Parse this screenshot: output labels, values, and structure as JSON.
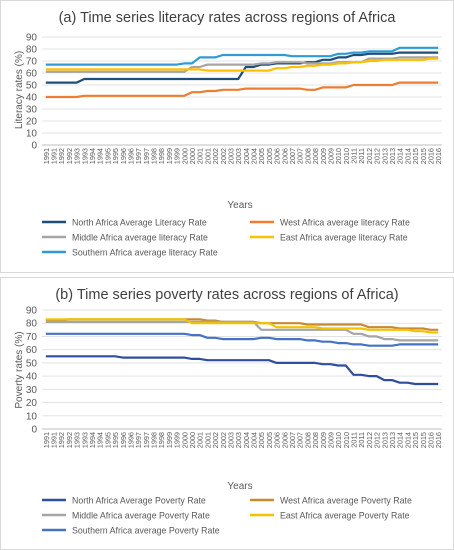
{
  "chart_data": [
    {
      "type": "line",
      "title": "(a) Time series literacy rates across regions of Africa",
      "xlabel": "Years",
      "ylabel": "Literacy rates (%)",
      "ylim": [
        0,
        90
      ],
      "yticks": [
        0,
        10,
        20,
        30,
        40,
        50,
        60,
        70,
        80,
        90
      ],
      "grid": true,
      "legend_position": "bottom",
      "categories": [
        "1991",
        "1991",
        "1992",
        "1992",
        "1993",
        "1993",
        "1994",
        "1994",
        "1995",
        "1995",
        "1996",
        "1996",
        "1997",
        "1997",
        "1998",
        "1998",
        "1999",
        "1999",
        "2000",
        "2000",
        "2001",
        "2001",
        "2002",
        "2002",
        "2003",
        "2003",
        "2004",
        "2004",
        "2005",
        "2005",
        "2006",
        "2006",
        "2007",
        "2007",
        "2008",
        "2008",
        "2009",
        "2009",
        "2010",
        "2010",
        "2011",
        "2011",
        "2012",
        "2012",
        "2013",
        "2013",
        "2014",
        "2014",
        "2015",
        "2015",
        "2016",
        "2016"
      ],
      "series": [
        {
          "name": "North Africa Average Literacy Rate",
          "color": "#1f4e79",
          "values": [
            52,
            52,
            52,
            52,
            52,
            55,
            55,
            55,
            55,
            55,
            55,
            55,
            55,
            55,
            55,
            55,
            55,
            55,
            55,
            55,
            55,
            55,
            55,
            55,
            55,
            55,
            65,
            65,
            67,
            67,
            68,
            68,
            68,
            68,
            69,
            69,
            71,
            71,
            73,
            73,
            75,
            75,
            76,
            76,
            76,
            76,
            77,
            77,
            77,
            77,
            77,
            77
          ]
        },
        {
          "name": "West Africa average literacy Rate",
          "color": "#ed7d31",
          "values": [
            40,
            40,
            40,
            40,
            40,
            41,
            41,
            41,
            41,
            41,
            41,
            41,
            41,
            41,
            41,
            41,
            41,
            41,
            41,
            44,
            44,
            45,
            45,
            46,
            46,
            46,
            47,
            47,
            47,
            47,
            47,
            47,
            47,
            47,
            46,
            46,
            48,
            48,
            48,
            48,
            50,
            50,
            50,
            50,
            50,
            50,
            52,
            52,
            52,
            52,
            52,
            52
          ]
        },
        {
          "name": "Middle Africa average literacy Rate",
          "color": "#a5a5a5",
          "values": [
            61,
            61,
            61,
            61,
            61,
            61,
            61,
            61,
            61,
            61,
            61,
            61,
            61,
            61,
            61,
            61,
            61,
            61,
            61,
            65,
            65,
            67,
            67,
            67,
            67,
            67,
            67,
            67,
            68,
            68,
            69,
            69,
            69,
            69,
            68,
            68,
            68,
            68,
            69,
            69,
            69,
            69,
            72,
            72,
            72,
            72,
            73,
            73,
            73,
            73,
            73,
            73
          ]
        },
        {
          "name": "East Africa average literacy Rate",
          "color": "#ffc000",
          "values": [
            63,
            63,
            63,
            63,
            63,
            63,
            63,
            63,
            63,
            63,
            63,
            63,
            63,
            63,
            63,
            63,
            63,
            63,
            63,
            63,
            63,
            62,
            62,
            62,
            62,
            62,
            62,
            62,
            62,
            62,
            64,
            64,
            65,
            65,
            66,
            66,
            67,
            67,
            68,
            68,
            69,
            69,
            70,
            70,
            71,
            71,
            71,
            71,
            71,
            71,
            72,
            72
          ]
        },
        {
          "name": "Southern Africa average literacy Rate",
          "color": "#2e9bd6",
          "values": [
            67,
            67,
            67,
            67,
            67,
            67,
            67,
            67,
            67,
            67,
            67,
            67,
            67,
            67,
            67,
            67,
            67,
            67,
            68,
            68,
            73,
            73,
            73,
            75,
            75,
            75,
            75,
            75,
            75,
            75,
            75,
            75,
            74,
            74,
            74,
            74,
            74,
            74,
            76,
            76,
            77,
            77,
            78,
            78,
            78,
            78,
            81,
            81,
            81,
            81,
            81,
            81
          ]
        }
      ]
    },
    {
      "type": "line",
      "title": "(b) Time series poverty rates across regions of Africa)",
      "xlabel": "Years",
      "ylabel": "Poverty rates (%)",
      "ylim": [
        0,
        90
      ],
      "yticks": [
        0,
        10,
        20,
        30,
        40,
        50,
        60,
        70,
        80,
        90
      ],
      "grid": true,
      "legend_position": "bottom",
      "categories": [
        "1991",
        "1991",
        "1992",
        "1992",
        "1993",
        "1993",
        "1994",
        "1994",
        "1995",
        "1995",
        "1996",
        "1996",
        "1997",
        "1997",
        "1998",
        "1998",
        "1999",
        "1999",
        "2000",
        "2000",
        "2001",
        "2001",
        "2002",
        "2002",
        "2003",
        "2003",
        "2004",
        "2004",
        "2005",
        "2005",
        "2006",
        "2006",
        "2007",
        "2007",
        "2008",
        "2008",
        "2009",
        "2009",
        "2010",
        "2010",
        "2011",
        "2011",
        "2012",
        "2012",
        "2013",
        "2013",
        "2014",
        "2014",
        "2015",
        "2015",
        "2016",
        "2016"
      ],
      "series": [
        {
          "name": "North Africa Average Poverty Rate",
          "color": "#2f4e9e",
          "values": [
            55,
            55,
            55,
            55,
            55,
            55,
            55,
            55,
            55,
            55,
            54,
            54,
            54,
            54,
            54,
            54,
            54,
            54,
            54,
            53,
            53,
            52,
            52,
            52,
            52,
            52,
            52,
            52,
            52,
            52,
            50,
            50,
            50,
            50,
            50,
            50,
            49,
            49,
            48,
            48,
            41,
            41,
            40,
            40,
            37,
            37,
            35,
            35,
            34,
            34,
            34,
            34
          ]
        },
        {
          "name": "West Africa average Poverty Rate",
          "color": "#c98a2e",
          "values": [
            82,
            82,
            82,
            83,
            83,
            83,
            83,
            83,
            83,
            83,
            83,
            83,
            83,
            83,
            83,
            83,
            83,
            83,
            83,
            83,
            83,
            82,
            82,
            81,
            81,
            81,
            81,
            81,
            80,
            80,
            80,
            80,
            80,
            80,
            79,
            79,
            79,
            79,
            79,
            79,
            79,
            79,
            77,
            77,
            77,
            77,
            76,
            76,
            76,
            76,
            75,
            75
          ]
        },
        {
          "name": "Middle Africa average Poverty Rate",
          "color": "#a5a5a5",
          "values": [
            81,
            81,
            81,
            81,
            81,
            81,
            81,
            81,
            81,
            81,
            81,
            81,
            81,
            81,
            81,
            81,
            81,
            81,
            81,
            81,
            81,
            81,
            81,
            81,
            81,
            81,
            81,
            81,
            75,
            75,
            75,
            75,
            75,
            75,
            75,
            75,
            75,
            75,
            75,
            75,
            72,
            72,
            70,
            70,
            68,
            68,
            67,
            67,
            67,
            67,
            67,
            67
          ]
        },
        {
          "name": "East Africa average Poverty Rate",
          "color": "#f2c300",
          "values": [
            83,
            83,
            83,
            83,
            83,
            83,
            83,
            83,
            83,
            83,
            83,
            83,
            83,
            83,
            83,
            83,
            83,
            83,
            83,
            80,
            80,
            80,
            80,
            80,
            80,
            80,
            80,
            80,
            80,
            80,
            77,
            77,
            77,
            77,
            77,
            77,
            76,
            76,
            76,
            76,
            76,
            76,
            75,
            75,
            75,
            75,
            75,
            75,
            74,
            74,
            73,
            73
          ]
        },
        {
          "name": "Southern Africa average Poverty Rate",
          "color": "#4472c4",
          "values": [
            72,
            72,
            72,
            72,
            72,
            72,
            72,
            72,
            72,
            72,
            72,
            72,
            72,
            72,
            72,
            72,
            72,
            72,
            72,
            71,
            71,
            69,
            69,
            68,
            68,
            68,
            68,
            68,
            69,
            69,
            68,
            68,
            68,
            68,
            67,
            67,
            66,
            66,
            65,
            65,
            64,
            64,
            63,
            63,
            63,
            63,
            64,
            64,
            64,
            64,
            64,
            64
          ]
        }
      ]
    }
  ]
}
